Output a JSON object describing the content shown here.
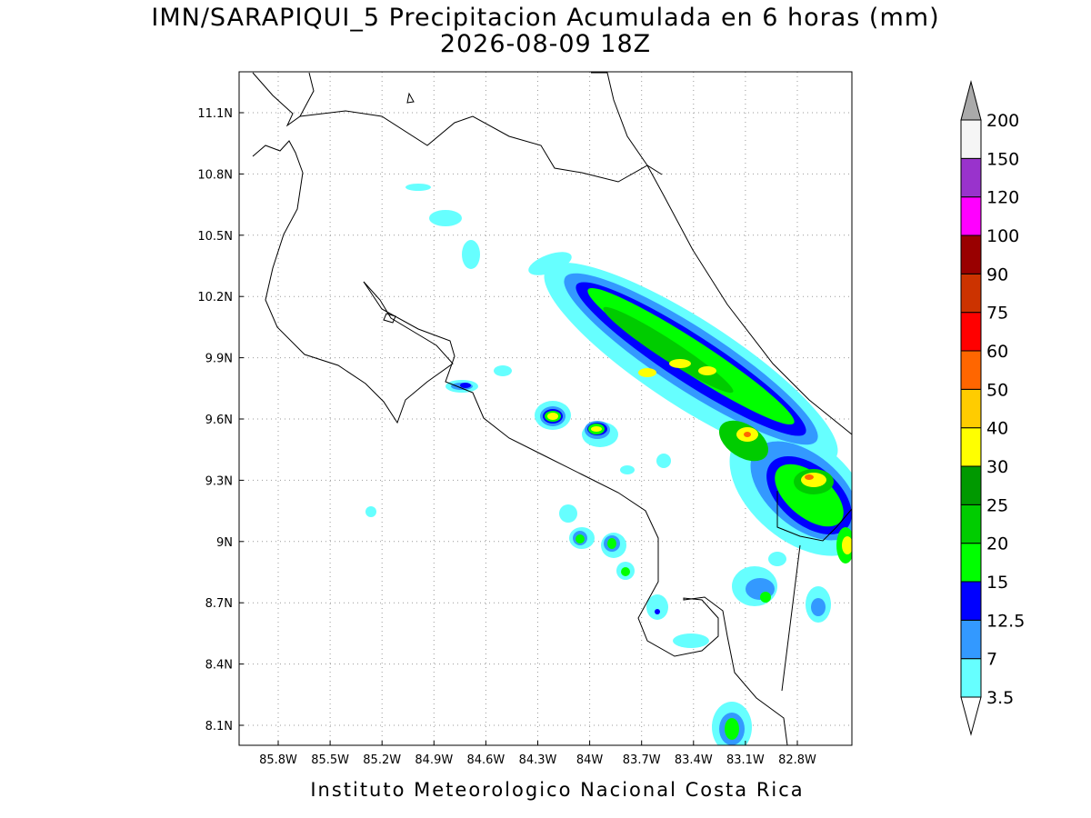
{
  "title": "IMN/SARAPIQUI_5 Precipitacion Acumulada en 6 horas (mm)",
  "subtitle": "2026-08-09 18Z",
  "x_axis": {
    "ticks": [
      "85.8W",
      "85.5W",
      "85.2W",
      "84.9W",
      "84.6W",
      "84.3W",
      "84W",
      "83.7W",
      "83.4W",
      "83.1W",
      "82.8W"
    ]
  },
  "y_axis": {
    "ticks": [
      "11.1N",
      "10.8N",
      "10.5N",
      "10.2N",
      "9.9N",
      "9.6N",
      "9.3N",
      "9N",
      "8.7N",
      "8.4N",
      "8.1N"
    ]
  },
  "colorbar": {
    "labels": [
      "3.5",
      "7",
      "12.5",
      "15",
      "20",
      "25",
      "30",
      "40",
      "50",
      "60",
      "75",
      "90",
      "100",
      "120",
      "150",
      "200"
    ],
    "colors": [
      "#66ffff",
      "#3399ff",
      "#0000ff",
      "#00ff00",
      "#00cc00",
      "#009900",
      "#ffff00",
      "#ffcc00",
      "#ff6600",
      "#ff0000",
      "#cc3300",
      "#990000",
      "#ff00ff",
      "#9933cc",
      "#f5f5f5"
    ],
    "under_color": "#ffffff",
    "over_color": "#aaaaaa"
  },
  "footer": "Instituto Meteorologico Nacional Costa Rica"
}
